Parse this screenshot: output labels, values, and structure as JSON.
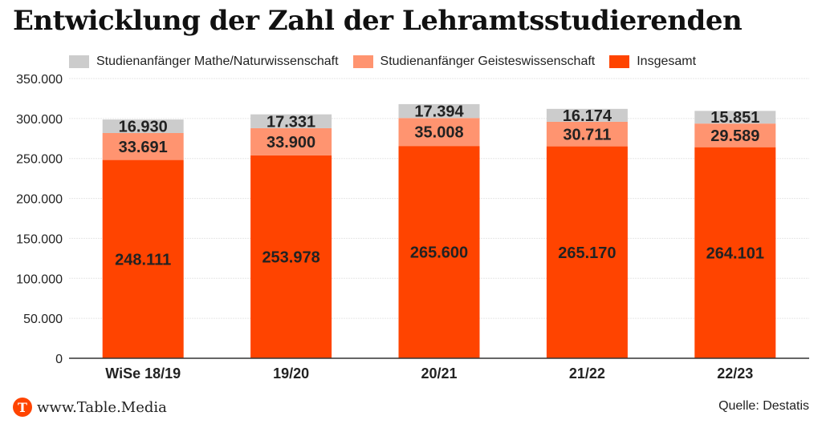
{
  "chart_data": {
    "type": "bar",
    "stacked": true,
    "title": "Entwicklung der Zahl der Lehramtsstudierenden",
    "xlabel": "",
    "ylabel": "",
    "ylim": [
      0,
      350000
    ],
    "yticks": [
      0,
      50000,
      100000,
      150000,
      200000,
      250000,
      300000,
      350000
    ],
    "ytick_labels": [
      "0",
      "50.000",
      "100.000",
      "150.000",
      "200.000",
      "250.000",
      "300.000",
      "350.000"
    ],
    "grid": true,
    "legend_position": "top",
    "categories": [
      "WiSe 18/19",
      "19/20",
      "20/21",
      "21/22",
      "22/23"
    ],
    "series": [
      {
        "name": "Insgesamt",
        "color": "#ff4400",
        "values": [
          248111,
          253978,
          265600,
          265170,
          264101
        ],
        "labels": [
          "248.111",
          "253.978",
          "265.600",
          "265.170",
          "264.101"
        ]
      },
      {
        "name": "Studienanfänger Geisteswissenschaft",
        "color": "#ff9470",
        "values": [
          33691,
          33900,
          35008,
          30711,
          29589
        ],
        "labels": [
          "33.691",
          "33.900",
          "35.008",
          "30.711",
          "29.589"
        ]
      },
      {
        "name": "Studienanfänger Mathe/Naturwissenschaft",
        "color": "#cccccc",
        "values": [
          16930,
          17331,
          17394,
          16174,
          15851
        ],
        "labels": [
          "16.930",
          "17.331",
          "17.394",
          "16.174",
          "15.851"
        ]
      }
    ]
  },
  "legend": [
    {
      "label": "Studienanfänger Mathe/Naturwissenschaft",
      "color": "#cccccc"
    },
    {
      "label": "Studienanfänger Geisteswissenschaft",
      "color": "#ff9470"
    },
    {
      "label": "Insgesamt",
      "color": "#ff4400"
    }
  ],
  "footer": {
    "logo_letter": "T",
    "site": "www.Table.Media",
    "source": "Quelle: Destatis"
  }
}
